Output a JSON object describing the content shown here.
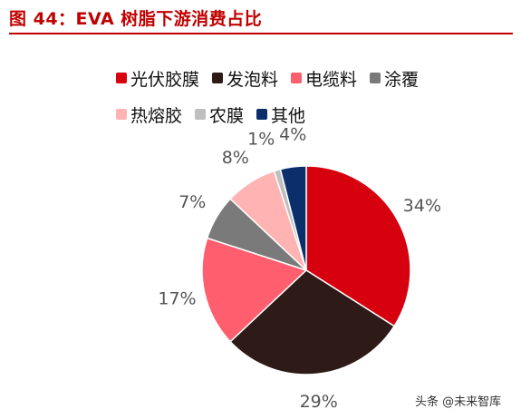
{
  "header": {
    "title": "图 44：EVA 树脂下游消费占比",
    "accent_color": "#c00000"
  },
  "watermark": "头条 @未来智库",
  "chart_data": {
    "type": "pie",
    "title": "图 44：EVA 树脂下游消费占比",
    "legend_position": "top",
    "slices": [
      {
        "label": "光伏胶膜",
        "value": 34,
        "display": "34%",
        "color": "#d7000f"
      },
      {
        "label": "发泡料",
        "value": 29,
        "display": "29%",
        "color": "#2e1b17"
      },
      {
        "label": "电缆料",
        "value": 17,
        "display": "17%",
        "color": "#ff5e6e"
      },
      {
        "label": "涂覆",
        "value": 7,
        "display": "7%",
        "color": "#7a7a7a"
      },
      {
        "label": "热熔胶",
        "value": 8,
        "display": "8%",
        "color": "#ffb3b3"
      },
      {
        "label": "农膜",
        "value": 1,
        "display": "1%",
        "color": "#bfbfbf"
      },
      {
        "label": "其他",
        "value": 4,
        "display": "4%",
        "color": "#0b2f6a"
      }
    ]
  }
}
